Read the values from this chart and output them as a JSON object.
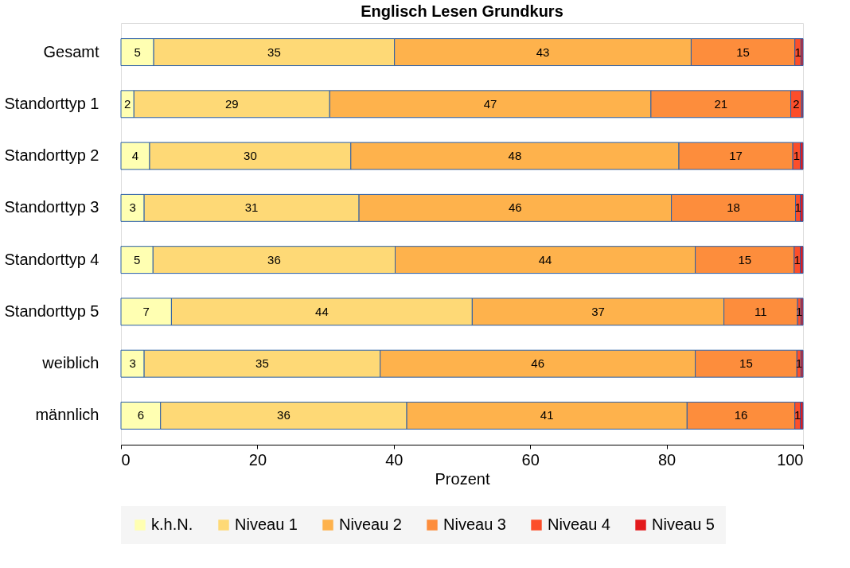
{
  "chart_data": {
    "type": "bar",
    "orientation": "horizontal",
    "stacked": true,
    "title": "Englisch Lesen Grundkurs",
    "xlabel": "Prozent",
    "categories": [
      "Gesamt",
      "Standorttyp 1",
      "Standorttyp 2",
      "Standorttyp 3",
      "Standorttyp 4",
      "Standorttyp 5",
      "weiblich",
      "männlich"
    ],
    "series": [
      {
        "name": "k.h.N.",
        "color": "#ffffb2",
        "values": [
          4.8,
          1.9,
          4.2,
          3.4,
          4.7,
          7.4,
          3.4,
          5.8
        ],
        "value_labels": [
          "5",
          "2",
          "4",
          "3",
          "5",
          "7",
          "3",
          "6"
        ]
      },
      {
        "name": "Niveau 1",
        "color": "#fed976",
        "values": [
          35.3,
          28.7,
          29.5,
          31.5,
          35.5,
          44.1,
          34.6,
          36.1
        ],
        "value_labels": [
          "35",
          "29",
          "30",
          "31",
          "36",
          "44",
          "35",
          "36"
        ]
      },
      {
        "name": "Niveau 2",
        "color": "#feb24c",
        "values": [
          43.5,
          47.1,
          48.1,
          45.8,
          44.0,
          36.9,
          46.2,
          41.1
        ],
        "value_labels": [
          "43",
          "47",
          "48",
          "46",
          "44",
          "37",
          "46",
          "41"
        ]
      },
      {
        "name": "Niveau 3",
        "color": "#fd8d3c",
        "values": [
          15.2,
          20.5,
          16.7,
          18.2,
          14.5,
          10.8,
          14.9,
          15.8
        ],
        "value_labels": [
          "15",
          "21",
          "17",
          "18",
          "15",
          "11",
          "15",
          "16"
        ]
      },
      {
        "name": "Niveau 4",
        "color": "#fc4e2a",
        "values": [
          0.9,
          1.6,
          1.1,
          0.7,
          0.9,
          0.5,
          0.6,
          0.8
        ],
        "value_labels": [
          "1",
          "2",
          "1",
          "1",
          "1",
          "1",
          "1",
          "1"
        ]
      },
      {
        "name": "Niveau 5",
        "color": "#e31a1c",
        "values": [
          0.3,
          0.2,
          0.4,
          0.4,
          0.4,
          0.3,
          0.3,
          0.4
        ]
      }
    ],
    "xlim": [
      0,
      100
    ],
    "xticks": [
      0,
      20,
      40,
      60,
      80,
      100
    ],
    "grid": false,
    "legend": "bottom"
  }
}
